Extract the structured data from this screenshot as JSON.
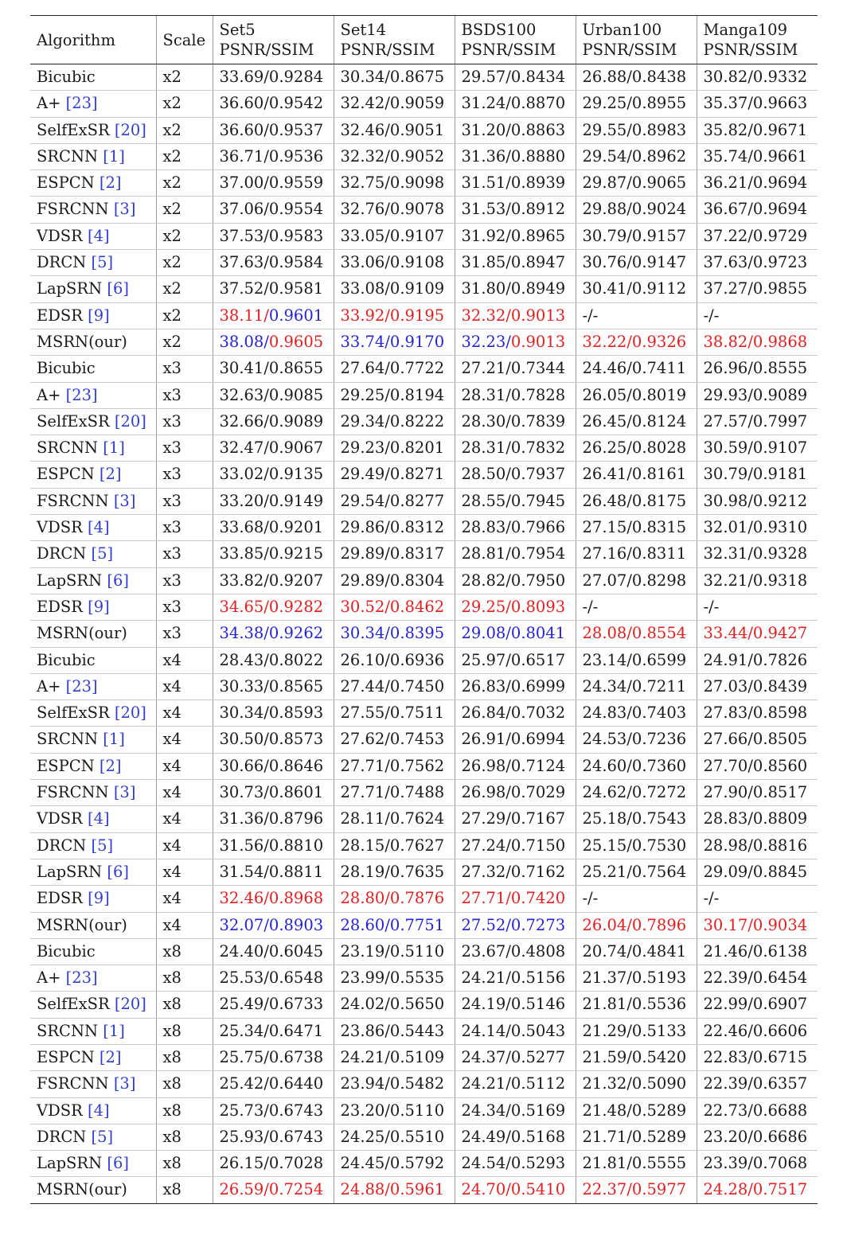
{
  "header": {
    "algorithm": "Algorithm",
    "scale": "Scale",
    "datasets": [
      {
        "name": "Set5",
        "metric": "PSNR/SSIM"
      },
      {
        "name": "Set14",
        "metric": "PSNR/SSIM"
      },
      {
        "name": "BSDS100",
        "metric": "PSNR/SSIM"
      },
      {
        "name": "Urban100",
        "metric": "PSNR/SSIM"
      },
      {
        "name": "Manga109",
        "metric": "PSNR/SSIM"
      }
    ]
  },
  "colors": {
    "best": "#e81c1c",
    "second": "#2222dd",
    "citation": "#2f3fd6"
  },
  "rows": [
    {
      "alg": "Bicubic",
      "ref": "",
      "scale": "x2",
      "vals": [
        [
          "33.69",
          "0.9284"
        ],
        [
          "30.34",
          "0.8675"
        ],
        [
          "29.57",
          "0.8434"
        ],
        [
          "26.88",
          "0.8438"
        ],
        [
          "30.82",
          "0.9332"
        ]
      ]
    },
    {
      "alg": "A+",
      "ref": "[23]",
      "scale": "x2",
      "vals": [
        [
          "36.60",
          "0.9542"
        ],
        [
          "32.42",
          "0.9059"
        ],
        [
          "31.24",
          "0.8870"
        ],
        [
          "29.25",
          "0.8955"
        ],
        [
          "35.37",
          "0.9663"
        ]
      ]
    },
    {
      "alg": "SelfExSR",
      "ref": "[20]",
      "scale": "x2",
      "vals": [
        [
          "36.60",
          "0.9537"
        ],
        [
          "32.46",
          "0.9051"
        ],
        [
          "31.20",
          "0.8863"
        ],
        [
          "29.55",
          "0.8983"
        ],
        [
          "35.82",
          "0.9671"
        ]
      ]
    },
    {
      "alg": "SRCNN",
      "ref": "[1]",
      "scale": "x2",
      "vals": [
        [
          "36.71",
          "0.9536"
        ],
        [
          "32.32",
          "0.9052"
        ],
        [
          "31.36",
          "0.8880"
        ],
        [
          "29.54",
          "0.8962"
        ],
        [
          "35.74",
          "0.9661"
        ]
      ]
    },
    {
      "alg": "ESPCN",
      "ref": "[2]",
      "scale": "x2",
      "vals": [
        [
          "37.00",
          "0.9559"
        ],
        [
          "32.75",
          "0.9098"
        ],
        [
          "31.51",
          "0.8939"
        ],
        [
          "29.87",
          "0.9065"
        ],
        [
          "36.21",
          "0.9694"
        ]
      ]
    },
    {
      "alg": "FSRCNN",
      "ref": "[3]",
      "scale": "x2",
      "vals": [
        [
          "37.06",
          "0.9554"
        ],
        [
          "32.76",
          "0.9078"
        ],
        [
          "31.53",
          "0.8912"
        ],
        [
          "29.88",
          "0.9024"
        ],
        [
          "36.67",
          "0.9694"
        ]
      ]
    },
    {
      "alg": "VDSR",
      "ref": "[4]",
      "scale": "x2",
      "vals": [
        [
          "37.53",
          "0.9583"
        ],
        [
          "33.05",
          "0.9107"
        ],
        [
          "31.92",
          "0.8965"
        ],
        [
          "30.79",
          "0.9157"
        ],
        [
          "37.22",
          "0.9729"
        ]
      ]
    },
    {
      "alg": "DRCN",
      "ref": "[5]",
      "scale": "x2",
      "vals": [
        [
          "37.63",
          "0.9584"
        ],
        [
          "33.06",
          "0.9108"
        ],
        [
          "31.85",
          "0.8947"
        ],
        [
          "30.76",
          "0.9147"
        ],
        [
          "37.63",
          "0.9723"
        ]
      ]
    },
    {
      "alg": "LapSRN",
      "ref": "[6]",
      "scale": "x2",
      "vals": [
        [
          "37.52",
          "0.9581"
        ],
        [
          "33.08",
          "0.9109"
        ],
        [
          "31.80",
          "0.8949"
        ],
        [
          "30.41",
          "0.9112"
        ],
        [
          "37.27",
          "0.9855"
        ]
      ]
    },
    {
      "alg": "EDSR",
      "ref": "[9]",
      "scale": "x2",
      "vals": [
        [
          "38.11",
          "0.9601",
          "red",
          "blue"
        ],
        [
          "33.92",
          "0.9195",
          "red",
          "red"
        ],
        [
          "32.32",
          "0.9013",
          "red",
          "red"
        ],
        [
          "-",
          "-"
        ],
        [
          "-",
          "-"
        ]
      ]
    },
    {
      "alg": "MSRN(our)",
      "ref": "",
      "scale": "x2",
      "vals": [
        [
          "38.08",
          "0.9605",
          "blue",
          "red"
        ],
        [
          "33.74",
          "0.9170",
          "blue",
          "blue"
        ],
        [
          "32.23",
          "0.9013",
          "blue",
          "red"
        ],
        [
          "32.22",
          "0.9326",
          "red",
          "red"
        ],
        [
          "38.82",
          "0.9868",
          "red",
          "red"
        ]
      ]
    },
    {
      "alg": "Bicubic",
      "ref": "",
      "scale": "x3",
      "gs": true,
      "vals": [
        [
          "30.41",
          "0.8655"
        ],
        [
          "27.64",
          "0.7722"
        ],
        [
          "27.21",
          "0.7344"
        ],
        [
          "24.46",
          "0.7411"
        ],
        [
          "26.96",
          "0.8555"
        ]
      ]
    },
    {
      "alg": "A+",
      "ref": "[23]",
      "scale": "x3",
      "vals": [
        [
          "32.63",
          "0.9085"
        ],
        [
          "29.25",
          "0.8194"
        ],
        [
          "28.31",
          "0.7828"
        ],
        [
          "26.05",
          "0.8019"
        ],
        [
          "29.93",
          "0.9089"
        ]
      ]
    },
    {
      "alg": "SelfExSR",
      "ref": "[20]",
      "scale": "x3",
      "vals": [
        [
          "32.66",
          "0.9089"
        ],
        [
          "29.34",
          "0.8222"
        ],
        [
          "28.30",
          "0.7839"
        ],
        [
          "26.45",
          "0.8124"
        ],
        [
          "27.57",
          "0.7997"
        ]
      ]
    },
    {
      "alg": "SRCNN",
      "ref": "[1]",
      "scale": "x3",
      "vals": [
        [
          "32.47",
          "0.9067"
        ],
        [
          "29.23",
          "0.8201"
        ],
        [
          "28.31",
          "0.7832"
        ],
        [
          "26.25",
          "0.8028"
        ],
        [
          "30.59",
          "0.9107"
        ]
      ]
    },
    {
      "alg": "ESPCN",
      "ref": "[2]",
      "scale": "x3",
      "vals": [
        [
          "33.02",
          "0.9135"
        ],
        [
          "29.49",
          "0.8271"
        ],
        [
          "28.50",
          "0.7937"
        ],
        [
          "26.41",
          "0.8161"
        ],
        [
          "30.79",
          "0.9181"
        ]
      ]
    },
    {
      "alg": "FSRCNN",
      "ref": "[3]",
      "scale": "x3",
      "vals": [
        [
          "33.20",
          "0.9149"
        ],
        [
          "29.54",
          "0.8277"
        ],
        [
          "28.55",
          "0.7945"
        ],
        [
          "26.48",
          "0.8175"
        ],
        [
          "30.98",
          "0.9212"
        ]
      ]
    },
    {
      "alg": "VDSR",
      "ref": "[4]",
      "scale": "x3",
      "vals": [
        [
          "33.68",
          "0.9201"
        ],
        [
          "29.86",
          "0.8312"
        ],
        [
          "28.83",
          "0.7966"
        ],
        [
          "27.15",
          "0.8315"
        ],
        [
          "32.01",
          "0.9310"
        ]
      ]
    },
    {
      "alg": "DRCN",
      "ref": "[5]",
      "scale": "x3",
      "vals": [
        [
          "33.85",
          "0.9215"
        ],
        [
          "29.89",
          "0.8317"
        ],
        [
          "28.81",
          "0.7954"
        ],
        [
          "27.16",
          "0.8311"
        ],
        [
          "32.31",
          "0.9328"
        ]
      ]
    },
    {
      "alg": "LapSRN",
      "ref": "[6]",
      "scale": "x3",
      "vals": [
        [
          "33.82",
          "0.9207"
        ],
        [
          "29.89",
          "0.8304"
        ],
        [
          "28.82",
          "0.7950"
        ],
        [
          "27.07",
          "0.8298"
        ],
        [
          "32.21",
          "0.9318"
        ]
      ]
    },
    {
      "alg": "EDSR",
      "ref": "[9]",
      "scale": "x3",
      "vals": [
        [
          "34.65",
          "0.9282",
          "red",
          "red"
        ],
        [
          "30.52",
          "0.8462",
          "red",
          "red"
        ],
        [
          "29.25",
          "0.8093",
          "red",
          "red"
        ],
        [
          "-",
          "-"
        ],
        [
          "-",
          "-"
        ]
      ]
    },
    {
      "alg": "MSRN(our)",
      "ref": "",
      "scale": "x3",
      "vals": [
        [
          "34.38",
          "0.9262",
          "blue",
          "blue"
        ],
        [
          "30.34",
          "0.8395",
          "blue",
          "blue"
        ],
        [
          "29.08",
          "0.8041",
          "blue",
          "blue"
        ],
        [
          "28.08",
          "0.8554",
          "red",
          "red"
        ],
        [
          "33.44",
          "0.9427",
          "red",
          "red"
        ]
      ]
    },
    {
      "alg": "Bicubic",
      "ref": "",
      "scale": "x4",
      "gs": true,
      "vals": [
        [
          "28.43",
          "0.8022"
        ],
        [
          "26.10",
          "0.6936"
        ],
        [
          "25.97",
          "0.6517"
        ],
        [
          "23.14",
          "0.6599"
        ],
        [
          "24.91",
          "0.7826"
        ]
      ]
    },
    {
      "alg": "A+",
      "ref": "[23]",
      "scale": "x4",
      "vals": [
        [
          "30.33",
          "0.8565"
        ],
        [
          "27.44",
          "0.7450"
        ],
        [
          "26.83",
          "0.6999"
        ],
        [
          "24.34",
          "0.7211"
        ],
        [
          "27.03",
          "0.8439"
        ]
      ]
    },
    {
      "alg": "SelfExSR",
      "ref": "[20]",
      "scale": "x4",
      "vals": [
        [
          "30.34",
          "0.8593"
        ],
        [
          "27.55",
          "0.7511"
        ],
        [
          "26.84",
          "0.7032"
        ],
        [
          "24.83",
          "0.7403"
        ],
        [
          "27.83",
          "0.8598"
        ]
      ]
    },
    {
      "alg": "SRCNN",
      "ref": "[1]",
      "scale": "x4",
      "vals": [
        [
          "30.50",
          "0.8573"
        ],
        [
          "27.62",
          "0.7453"
        ],
        [
          "26.91",
          "0.6994"
        ],
        [
          "24.53",
          "0.7236"
        ],
        [
          "27.66",
          "0.8505"
        ]
      ]
    },
    {
      "alg": "ESPCN",
      "ref": "[2]",
      "scale": "x4",
      "vals": [
        [
          "30.66",
          "0.8646"
        ],
        [
          "27.71",
          "0.7562"
        ],
        [
          "26.98",
          "0.7124"
        ],
        [
          "24.60",
          "0.7360"
        ],
        [
          "27.70",
          "0.8560"
        ]
      ]
    },
    {
      "alg": "FSRCNN",
      "ref": "[3]",
      "scale": "x4",
      "vals": [
        [
          "30.73",
          "0.8601"
        ],
        [
          "27.71",
          "0.7488"
        ],
        [
          "26.98",
          "0.7029"
        ],
        [
          "24.62",
          "0.7272"
        ],
        [
          "27.90",
          "0.8517"
        ]
      ]
    },
    {
      "alg": "VDSR",
      "ref": "[4]",
      "scale": "x4",
      "vals": [
        [
          "31.36",
          "0.8796"
        ],
        [
          "28.11",
          "0.7624"
        ],
        [
          "27.29",
          "0.7167"
        ],
        [
          "25.18",
          "0.7543"
        ],
        [
          "28.83",
          "0.8809"
        ]
      ]
    },
    {
      "alg": "DRCN",
      "ref": "[5]",
      "scale": "x4",
      "vals": [
        [
          "31.56",
          "0.8810"
        ],
        [
          "28.15",
          "0.7627"
        ],
        [
          "27.24",
          "0.7150"
        ],
        [
          "25.15",
          "0.7530"
        ],
        [
          "28.98",
          "0.8816"
        ]
      ]
    },
    {
      "alg": "LapSRN",
      "ref": "[6]",
      "scale": "x4",
      "vals": [
        [
          "31.54",
          "0.8811"
        ],
        [
          "28.19",
          "0.7635"
        ],
        [
          "27.32",
          "0.7162"
        ],
        [
          "25.21",
          "0.7564"
        ],
        [
          "29.09",
          "0.8845"
        ]
      ]
    },
    {
      "alg": "EDSR",
      "ref": "[9]",
      "scale": "x4",
      "vals": [
        [
          "32.46",
          "0.8968",
          "red",
          "red"
        ],
        [
          "28.80",
          "0.7876",
          "red",
          "red"
        ],
        [
          "27.71",
          "0.7420",
          "red",
          "red"
        ],
        [
          "-",
          "-"
        ],
        [
          "-",
          "-"
        ]
      ]
    },
    {
      "alg": "MSRN(our)",
      "ref": "",
      "scale": "x4",
      "vals": [
        [
          "32.07",
          "0.8903",
          "blue",
          "blue"
        ],
        [
          "28.60",
          "0.7751",
          "blue",
          "blue"
        ],
        [
          "27.52",
          "0.7273",
          "blue",
          "blue"
        ],
        [
          "26.04",
          "0.7896",
          "red",
          "red"
        ],
        [
          "30.17",
          "0.9034",
          "red",
          "red"
        ]
      ]
    },
    {
      "alg": "Bicubic",
      "ref": "",
      "scale": "x8",
      "vals": [
        [
          "24.40",
          "0.6045"
        ],
        [
          "23.19",
          "0.5110"
        ],
        [
          "23.67",
          "0.4808"
        ],
        [
          "20.74",
          "0.4841"
        ],
        [
          "21.46",
          "0.6138"
        ]
      ]
    },
    {
      "alg": "A+",
      "ref": "[23]",
      "scale": "x8",
      "gs": true,
      "vals": [
        [
          "25.53",
          "0.6548"
        ],
        [
          "23.99",
          "0.5535"
        ],
        [
          "24.21",
          "0.5156"
        ],
        [
          "21.37",
          "0.5193"
        ],
        [
          "22.39",
          "0.6454"
        ]
      ]
    },
    {
      "alg": "SelfExSR",
      "ref": "[20]",
      "scale": "x8",
      "vals": [
        [
          "25.49",
          "0.6733"
        ],
        [
          "24.02",
          "0.5650"
        ],
        [
          "24.19",
          "0.5146"
        ],
        [
          "21.81",
          "0.5536"
        ],
        [
          "22.99",
          "0.6907"
        ]
      ]
    },
    {
      "alg": "SRCNN",
      "ref": "[1]",
      "scale": "x8",
      "vals": [
        [
          "25.34",
          "0.6471"
        ],
        [
          "23.86",
          "0.5443"
        ],
        [
          "24.14",
          "0.5043"
        ],
        [
          "21.29",
          "0.5133"
        ],
        [
          "22.46",
          "0.6606"
        ]
      ]
    },
    {
      "alg": "ESPCN",
      "ref": "[2]",
      "scale": "x8",
      "vals": [
        [
          "25.75",
          "0.6738"
        ],
        [
          "24.21",
          "0.5109"
        ],
        [
          "24.37",
          "0.5277"
        ],
        [
          "21.59",
          "0.5420"
        ],
        [
          "22.83",
          "0.6715"
        ]
      ]
    },
    {
      "alg": "FSRCNN",
      "ref": "[3]",
      "scale": "x8",
      "vals": [
        [
          "25.42",
          "0.6440"
        ],
        [
          "23.94",
          "0.5482"
        ],
        [
          "24.21",
          "0.5112"
        ],
        [
          "21.32",
          "0.5090"
        ],
        [
          "22.39",
          "0.6357"
        ]
      ]
    },
    {
      "alg": "VDSR",
      "ref": "[4]",
      "scale": "x8",
      "vals": [
        [
          "25.73",
          "0.6743"
        ],
        [
          "23.20",
          "0.5110"
        ],
        [
          "24.34",
          "0.5169"
        ],
        [
          "21.48",
          "0.5289"
        ],
        [
          "22.73",
          "0.6688"
        ]
      ]
    },
    {
      "alg": "DRCN",
      "ref": "[5]",
      "scale": "x8",
      "vals": [
        [
          "25.93",
          "0.6743"
        ],
        [
          "24.25",
          "0.5510"
        ],
        [
          "24.49",
          "0.5168"
        ],
        [
          "21.71",
          "0.5289"
        ],
        [
          "23.20",
          "0.6686"
        ]
      ]
    },
    {
      "alg": "LapSRN",
      "ref": "[6]",
      "scale": "x8",
      "vals": [
        [
          "26.15",
          "0.7028"
        ],
        [
          "24.45",
          "0.5792"
        ],
        [
          "24.54",
          "0.5293"
        ],
        [
          "21.81",
          "0.5555"
        ],
        [
          "23.39",
          "0.7068"
        ]
      ]
    },
    {
      "alg": "MSRN(our)",
      "ref": "",
      "scale": "x8",
      "vals": [
        [
          "26.59",
          "0.7254",
          "red",
          "red"
        ],
        [
          "24.88",
          "0.5961",
          "red",
          "red"
        ],
        [
          "24.70",
          "0.5410",
          "red",
          "red"
        ],
        [
          "22.37",
          "0.5977",
          "red",
          "red"
        ],
        [
          "24.28",
          "0.7517",
          "red",
          "red"
        ]
      ]
    }
  ]
}
